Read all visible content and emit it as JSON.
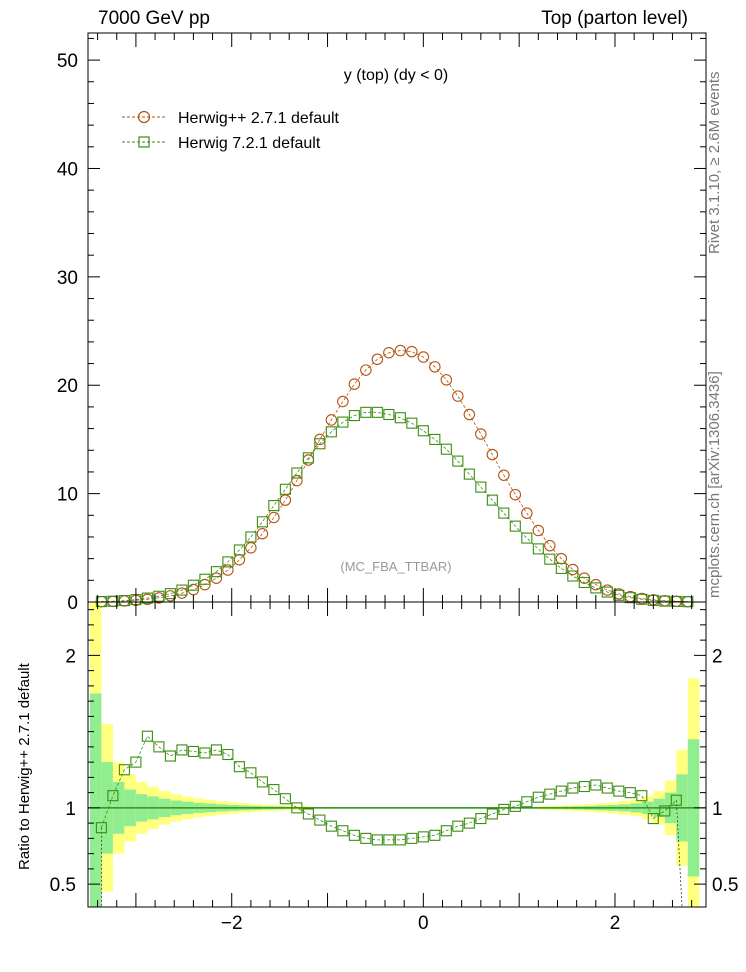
{
  "header": {
    "left": "7000 GeV pp",
    "right": "Top (parton level)"
  },
  "side_labels": {
    "rivet": "Rivet 3.1.10, ≥ 2.6M events",
    "source": "mcplots.cern.ch [arXiv:1306.3436]"
  },
  "chart_data": [
    {
      "type": "scatter",
      "title": "y (top) (dy < 0)",
      "watermark": "(MC_FBA_TTBAR)",
      "xlabel": "",
      "ylabel": "",
      "xlim": [
        -3.5,
        2.95
      ],
      "ylim": [
        0,
        52.5
      ],
      "yticks": [
        0,
        10,
        20,
        30,
        40,
        50
      ],
      "legend_position": "top-left",
      "x": [
        -3.36,
        -3.24,
        -3.12,
        -3.0,
        -2.88,
        -2.76,
        -2.64,
        -2.52,
        -2.4,
        -2.28,
        -2.16,
        -2.04,
        -1.92,
        -1.8,
        -1.68,
        -1.56,
        -1.44,
        -1.32,
        -1.2,
        -1.08,
        -0.96,
        -0.84,
        -0.72,
        -0.6,
        -0.48,
        -0.36,
        -0.24,
        -0.12,
        0.0,
        0.12,
        0.24,
        0.36,
        0.48,
        0.6,
        0.72,
        0.84,
        0.96,
        1.08,
        1.2,
        1.32,
        1.44,
        1.56,
        1.68,
        1.8,
        1.92,
        2.04,
        2.16,
        2.28,
        2.4,
        2.52,
        2.64,
        2.76
      ],
      "series": [
        {
          "name": "Herwig++ 2.7.1 default",
          "color": "#b5520f",
          "marker": "circle",
          "values": [
            0.04,
            0.06,
            0.1,
            0.16,
            0.25,
            0.38,
            0.57,
            0.82,
            1.15,
            1.6,
            2.2,
            2.95,
            3.9,
            5.0,
            6.3,
            7.8,
            9.4,
            11.2,
            13.1,
            15.0,
            16.8,
            18.5,
            20.1,
            21.4,
            22.4,
            23.0,
            23.2,
            23.1,
            22.6,
            21.7,
            20.5,
            19.0,
            17.3,
            15.5,
            13.6,
            11.7,
            9.9,
            8.2,
            6.6,
            5.2,
            4.0,
            3.0,
            2.2,
            1.6,
            1.1,
            0.75,
            0.5,
            0.32,
            0.2,
            0.12,
            0.07,
            0.04
          ]
        },
        {
          "name": "Herwig 7.2.1 default",
          "color": "#3c8c14",
          "marker": "square",
          "values": [
            0.04,
            0.07,
            0.13,
            0.22,
            0.36,
            0.53,
            0.77,
            1.1,
            1.55,
            2.1,
            2.8,
            3.7,
            4.8,
            6.0,
            7.4,
            8.9,
            10.4,
            11.9,
            13.3,
            14.6,
            15.7,
            16.6,
            17.2,
            17.5,
            17.5,
            17.3,
            17.0,
            16.5,
            15.8,
            15.0,
            14.1,
            13.0,
            11.8,
            10.6,
            9.4,
            8.2,
            7.0,
            5.9,
            4.9,
            3.95,
            3.1,
            2.4,
            1.8,
            1.3,
            0.92,
            0.62,
            0.4,
            0.25,
            0.15,
            0.08,
            0.05,
            0.03
          ]
        }
      ]
    },
    {
      "type": "scatter",
      "title": "",
      "xlabel": "",
      "ylabel": "Ratio to Herwig++ 2.7.1 default",
      "xlim": [
        -3.5,
        2.95
      ],
      "ylim": [
        0.35,
        2.35
      ],
      "yticks": [
        0.5,
        1,
        2
      ],
      "xticks": [
        -2,
        0,
        2
      ],
      "reference": 1,
      "band_x": [
        -3.42,
        -3.3,
        -3.18,
        -3.06,
        -2.94,
        -2.82,
        -2.7,
        -2.58,
        -2.46,
        -2.34,
        -2.22,
        -2.1,
        -1.98,
        -1.86,
        -1.74,
        -1.62,
        -1.5,
        -1.38,
        -1.26,
        1.26,
        1.38,
        1.5,
        1.62,
        1.74,
        1.86,
        1.98,
        2.1,
        2.22,
        2.34,
        2.46,
        2.58,
        2.7,
        2.82
      ],
      "yellow_band_halfwidth": [
        1.35,
        0.55,
        0.3,
        0.22,
        0.17,
        0.14,
        0.11,
        0.09,
        0.075,
        0.062,
        0.052,
        0.044,
        0.037,
        0.031,
        0.026,
        0.022,
        0.018,
        0.015,
        0.012,
        0.012,
        0.015,
        0.018,
        0.022,
        0.026,
        0.031,
        0.037,
        0.045,
        0.055,
        0.075,
        0.11,
        0.18,
        0.38,
        0.85
      ],
      "green_band_halfwidth": [
        0.75,
        0.3,
        0.17,
        0.12,
        0.09,
        0.075,
        0.06,
        0.048,
        0.04,
        0.033,
        0.028,
        0.023,
        0.019,
        0.016,
        0.013,
        0.011,
        0.009,
        0.007,
        0.006,
        0.006,
        0.007,
        0.009,
        0.011,
        0.013,
        0.016,
        0.019,
        0.023,
        0.03,
        0.04,
        0.06,
        0.1,
        0.22,
        0.45
      ],
      "series": [
        {
          "name": "Herwig 7.2.1 default",
          "color": "#3c8c14",
          "marker": "square",
          "x": [
            -3.36,
            -3.24,
            -3.12,
            -3.0,
            -2.88,
            -2.76,
            -2.64,
            -2.52,
            -2.4,
            -2.28,
            -2.16,
            -2.04,
            -1.92,
            -1.8,
            -1.68,
            -1.56,
            -1.44,
            -1.32,
            -1.2,
            -1.08,
            -0.96,
            -0.84,
            -0.72,
            -0.6,
            -0.48,
            -0.36,
            -0.24,
            -0.12,
            0.0,
            0.12,
            0.24,
            0.36,
            0.48,
            0.6,
            0.72,
            0.84,
            0.96,
            1.08,
            1.2,
            1.32,
            1.44,
            1.56,
            1.68,
            1.8,
            1.92,
            2.04,
            2.16,
            2.28,
            2.4,
            2.52,
            2.64
          ],
          "values": [
            0.87,
            1.08,
            1.25,
            1.3,
            1.47,
            1.4,
            1.34,
            1.38,
            1.37,
            1.36,
            1.38,
            1.35,
            1.27,
            1.23,
            1.17,
            1.12,
            1.06,
            1.0,
            0.96,
            0.92,
            0.88,
            0.85,
            0.82,
            0.8,
            0.79,
            0.79,
            0.79,
            0.8,
            0.81,
            0.82,
            0.85,
            0.88,
            0.9,
            0.93,
            0.96,
            0.99,
            1.01,
            1.04,
            1.07,
            1.09,
            1.11,
            1.13,
            1.14,
            1.15,
            1.13,
            1.11,
            1.1,
            1.08,
            0.93,
            0.98,
            1.05
          ]
        }
      ]
    }
  ]
}
